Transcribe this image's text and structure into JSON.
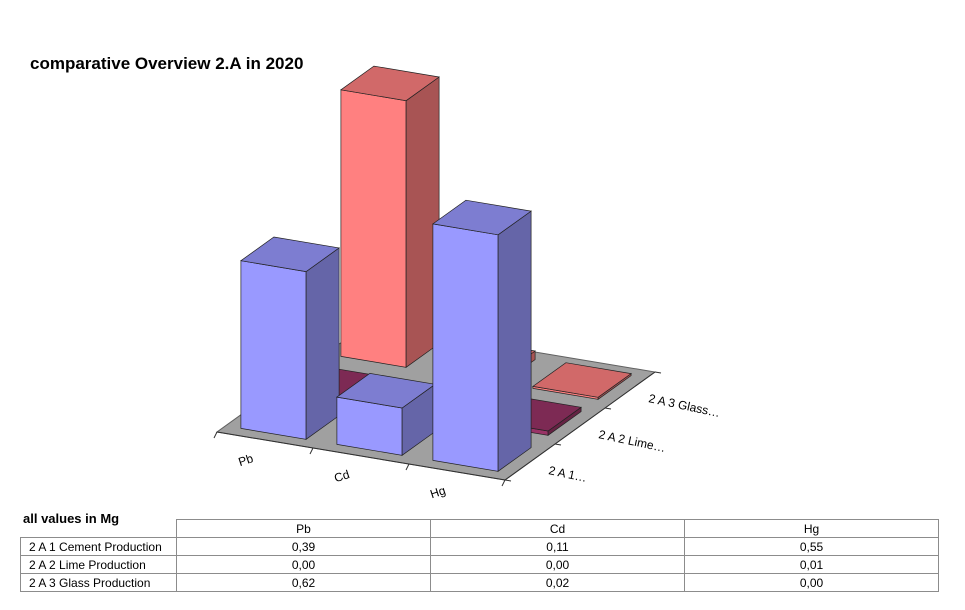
{
  "chart_data": {
    "type": "bar",
    "title": "comparative Overview 2.A in 2020",
    "categories": [
      "Pb",
      "Cd",
      "Hg"
    ],
    "depth_labels": [
      "2 A 1…",
      "2 A 2 Lime…",
      "2 A 3 Glass…"
    ],
    "series": [
      {
        "name": "2 A 1 Cement Production",
        "values": [
          0.39,
          0.11,
          0.55
        ],
        "color": "#9999ff"
      },
      {
        "name": "2 A 2 Lime Production",
        "values": [
          0.0,
          0.0,
          0.01
        ],
        "color": "#993366"
      },
      {
        "name": "2 A 3 Glass Production",
        "values": [
          0.62,
          0.02,
          0.0
        ],
        "color": "#ff8080"
      }
    ],
    "floor_color": "#a0a0a0"
  },
  "table": {
    "units_note": "all values in Mg",
    "columns": [
      "Pb",
      "Cd",
      "Hg"
    ],
    "rows": [
      {
        "label": "2 A 1 Cement Production",
        "values": [
          "0,39",
          "0,11",
          "0,55"
        ]
      },
      {
        "label": "2 A 2 Lime Production",
        "values": [
          "0,00",
          "0,00",
          "0,01"
        ]
      },
      {
        "label": "2 A 3 Glass Production",
        "values": [
          "0,62",
          "0,02",
          "0,00"
        ]
      }
    ]
  }
}
